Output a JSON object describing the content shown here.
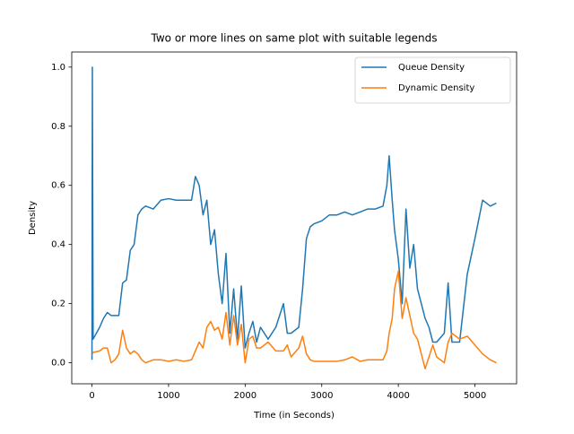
{
  "chart_data": {
    "type": "line",
    "title": "Two or more lines on same plot with suitable legends",
    "xlabel": "Time (in Seconds)",
    "ylabel": "Density",
    "x": [
      0,
      5,
      15,
      100,
      150,
      200,
      250,
      300,
      350,
      400,
      450,
      500,
      550,
      600,
      650,
      700,
      800,
      900,
      1000,
      1100,
      1200,
      1300,
      1350,
      1400,
      1450,
      1500,
      1550,
      1600,
      1650,
      1700,
      1750,
      1800,
      1850,
      1900,
      1950,
      2000,
      2050,
      2100,
      2150,
      2200,
      2300,
      2400,
      2500,
      2550,
      2600,
      2700,
      2750,
      2800,
      2850,
      2900,
      3000,
      3100,
      3200,
      3300,
      3400,
      3500,
      3600,
      3700,
      3800,
      3850,
      3880,
      3920,
      3950,
      4000,
      4050,
      4100,
      4150,
      4200,
      4250,
      4300,
      4350,
      4400,
      4450,
      4500,
      4600,
      4650,
      4700,
      4800,
      4900,
      5000,
      5100,
      5200,
      5280
    ],
    "series": [
      {
        "name": "Queue Density",
        "color": "#1f77b4",
        "values": [
          0.01,
          1.0,
          0.08,
          0.12,
          0.15,
          0.17,
          0.16,
          0.16,
          0.16,
          0.27,
          0.28,
          0.38,
          0.4,
          0.5,
          0.52,
          0.53,
          0.52,
          0.55,
          0.555,
          0.55,
          0.55,
          0.55,
          0.63,
          0.6,
          0.5,
          0.55,
          0.4,
          0.45,
          0.3,
          0.2,
          0.37,
          0.1,
          0.25,
          0.08,
          0.26,
          0.05,
          0.1,
          0.14,
          0.07,
          0.12,
          0.08,
          0.12,
          0.2,
          0.1,
          0.1,
          0.12,
          0.25,
          0.42,
          0.46,
          0.47,
          0.48,
          0.5,
          0.5,
          0.51,
          0.5,
          0.51,
          0.52,
          0.52,
          0.53,
          0.6,
          0.7,
          0.55,
          0.45,
          0.35,
          0.2,
          0.52,
          0.32,
          0.4,
          0.25,
          0.2,
          0.15,
          0.12,
          0.07,
          0.07,
          0.1,
          0.27,
          0.07,
          0.07,
          0.3,
          0.42,
          0.55,
          0.53,
          0.54
        ]
      },
      {
        "name": "Dynamic Density",
        "color": "#ff7f0e",
        "values": [
          0.03,
          0.03,
          0.035,
          0.04,
          0.05,
          0.05,
          0.0,
          0.01,
          0.03,
          0.11,
          0.05,
          0.03,
          0.04,
          0.03,
          0.01,
          0.0,
          0.01,
          0.01,
          0.005,
          0.01,
          0.005,
          0.01,
          0.04,
          0.07,
          0.05,
          0.12,
          0.14,
          0.11,
          0.12,
          0.08,
          0.17,
          0.06,
          0.16,
          0.06,
          0.13,
          0.0,
          0.08,
          0.09,
          0.05,
          0.05,
          0.07,
          0.04,
          0.04,
          0.06,
          0.02,
          0.05,
          0.09,
          0.03,
          0.01,
          0.005,
          0.005,
          0.005,
          0.005,
          0.01,
          0.02,
          0.005,
          0.01,
          0.01,
          0.01,
          0.04,
          0.1,
          0.15,
          0.25,
          0.31,
          0.15,
          0.22,
          0.16,
          0.1,
          0.08,
          0.03,
          -0.02,
          0.02,
          0.06,
          0.02,
          0.0,
          0.07,
          0.1,
          0.08,
          0.09,
          0.06,
          0.03,
          0.01,
          0.0
        ]
      }
    ],
    "xlim": [
      -264,
      5544
    ],
    "ylim": [
      -0.071,
      1.051
    ],
    "xticks": [
      0,
      1000,
      2000,
      3000,
      4000,
      5000
    ],
    "yticks": [
      {
        "value": 0,
        "label": "0.0"
      },
      0.2,
      0.4,
      0.6,
      0.8,
      {
        "value": 1,
        "label": "1.0"
      }
    ],
    "legend": "upper right",
    "grid": false
  }
}
